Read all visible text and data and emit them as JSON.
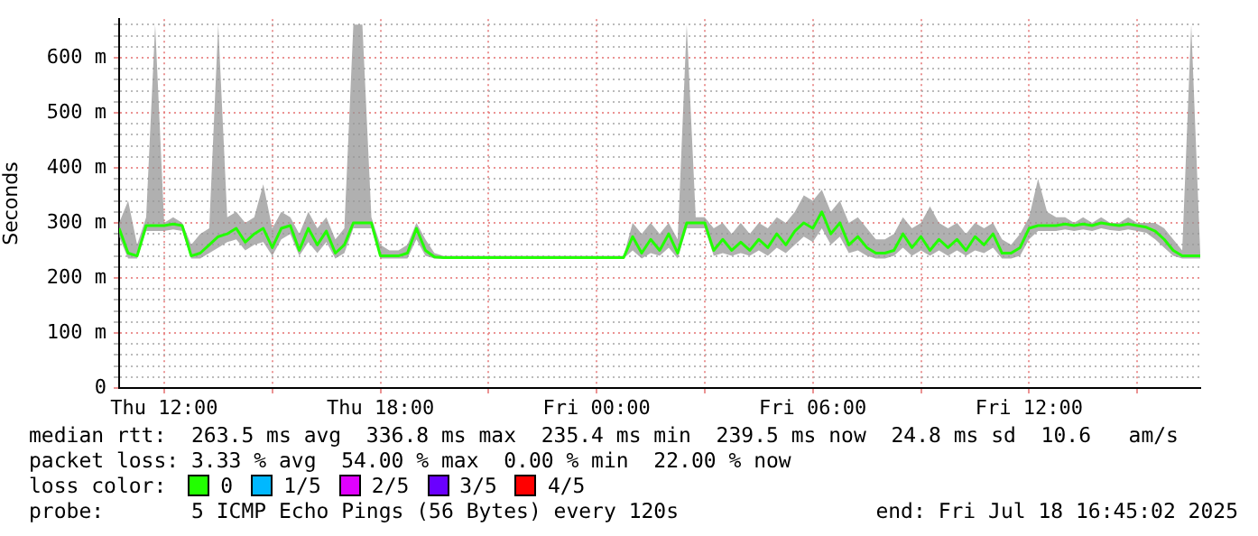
{
  "chart_data": {
    "type": "line",
    "ylabel": "Seconds",
    "x": [
      "2025-07-17T10:45",
      "2025-07-17T11:00",
      "2025-07-17T11:15",
      "2025-07-17T11:30",
      "2025-07-17T11:45",
      "2025-07-17T12:00",
      "2025-07-17T12:15",
      "2025-07-17T12:30",
      "2025-07-17T12:45",
      "2025-07-17T13:00",
      "2025-07-17T13:15",
      "2025-07-17T13:30",
      "2025-07-17T13:45",
      "2025-07-17T14:00",
      "2025-07-17T14:15",
      "2025-07-17T14:30",
      "2025-07-17T14:45",
      "2025-07-17T15:00",
      "2025-07-17T15:15",
      "2025-07-17T15:30",
      "2025-07-17T15:45",
      "2025-07-17T16:00",
      "2025-07-17T16:15",
      "2025-07-17T16:30",
      "2025-07-17T16:45",
      "2025-07-17T17:00",
      "2025-07-17T17:15",
      "2025-07-17T17:30",
      "2025-07-17T17:45",
      "2025-07-17T18:00",
      "2025-07-17T18:15",
      "2025-07-17T18:30",
      "2025-07-17T18:45",
      "2025-07-17T19:00",
      "2025-07-17T19:15",
      "2025-07-17T19:30",
      "2025-07-17T19:45",
      "2025-07-17T20:00",
      "2025-07-17T20:15",
      "2025-07-17T20:30",
      "2025-07-17T20:45",
      "2025-07-17T21:00",
      "2025-07-17T21:15",
      "2025-07-17T21:30",
      "2025-07-17T21:45",
      "2025-07-17T22:00",
      "2025-07-17T22:15",
      "2025-07-17T22:30",
      "2025-07-17T22:45",
      "2025-07-17T23:00",
      "2025-07-17T23:15",
      "2025-07-17T23:30",
      "2025-07-17T23:45",
      "2025-07-18T00:00",
      "2025-07-18T00:15",
      "2025-07-18T00:30",
      "2025-07-18T00:45",
      "2025-07-18T01:00",
      "2025-07-18T01:15",
      "2025-07-18T01:30",
      "2025-07-18T01:45",
      "2025-07-18T02:00",
      "2025-07-18T02:15",
      "2025-07-18T02:30",
      "2025-07-18T02:45",
      "2025-07-18T03:00",
      "2025-07-18T03:15",
      "2025-07-18T03:30",
      "2025-07-18T03:45",
      "2025-07-18T04:00",
      "2025-07-18T04:15",
      "2025-07-18T04:30",
      "2025-07-18T04:45",
      "2025-07-18T05:00",
      "2025-07-18T05:15",
      "2025-07-18T05:30",
      "2025-07-18T05:45",
      "2025-07-18T06:00",
      "2025-07-18T06:15",
      "2025-07-18T06:30",
      "2025-07-18T06:45",
      "2025-07-18T07:00",
      "2025-07-18T07:15",
      "2025-07-18T07:30",
      "2025-07-18T07:45",
      "2025-07-18T08:00",
      "2025-07-18T08:15",
      "2025-07-18T08:30",
      "2025-07-18T08:45",
      "2025-07-18T09:00",
      "2025-07-18T09:15",
      "2025-07-18T09:30",
      "2025-07-18T09:45",
      "2025-07-18T10:00",
      "2025-07-18T10:15",
      "2025-07-18T10:30",
      "2025-07-18T10:45",
      "2025-07-18T11:00",
      "2025-07-18T11:15",
      "2025-07-18T11:30",
      "2025-07-18T11:45",
      "2025-07-18T12:00",
      "2025-07-18T12:15",
      "2025-07-18T12:30",
      "2025-07-18T12:45",
      "2025-07-18T13:00",
      "2025-07-18T13:15",
      "2025-07-18T13:30",
      "2025-07-18T13:45",
      "2025-07-18T14:00",
      "2025-07-18T14:15",
      "2025-07-18T14:30",
      "2025-07-18T14:45",
      "2025-07-18T15:00",
      "2025-07-18T15:15",
      "2025-07-18T15:30",
      "2025-07-18T15:45",
      "2025-07-18T16:00",
      "2025-07-18T16:15",
      "2025-07-18T16:30",
      "2025-07-18T16:45"
    ],
    "series": [
      {
        "color": "#22ff00",
        "values": [
          290,
          245,
          240,
          295,
          295,
          295,
          298,
          295,
          240,
          245,
          260,
          275,
          280,
          290,
          265,
          280,
          290,
          255,
          290,
          295,
          250,
          290,
          260,
          285,
          245,
          260,
          300,
          300,
          300,
          240,
          240,
          240,
          245,
          290,
          250,
          238,
          237,
          237,
          237,
          237,
          237,
          237,
          237,
          237,
          237,
          237,
          237,
          237,
          237,
          237,
          237,
          237,
          237,
          237,
          237,
          237,
          237,
          275,
          245,
          270,
          250,
          280,
          245,
          300,
          300,
          300,
          250,
          270,
          250,
          265,
          250,
          270,
          255,
          280,
          260,
          285,
          300,
          290,
          320,
          280,
          300,
          260,
          275,
          255,
          245,
          245,
          250,
          280,
          255,
          275,
          250,
          270,
          255,
          270,
          250,
          275,
          260,
          280,
          245,
          245,
          255,
          290,
          295,
          295,
          295,
          298,
          295,
          298,
          295,
          300,
          297,
          295,
          298,
          295,
          292,
          285,
          270,
          250,
          240,
          240,
          240
        ],
        "upper": [
          300,
          340,
          260,
          310,
          660,
          300,
          310,
          300,
          260,
          280,
          290,
          660,
          310,
          320,
          300,
          310,
          370,
          290,
          320,
          310,
          280,
          320,
          290,
          310,
          270,
          290,
          660,
          660,
          310,
          260,
          250,
          250,
          260,
          300,
          270,
          245,
          240,
          240,
          240,
          240,
          240,
          240,
          240,
          240,
          240,
          240,
          240,
          240,
          240,
          240,
          240,
          240,
          240,
          240,
          240,
          240,
          240,
          300,
          280,
          300,
          280,
          300,
          270,
          660,
          310,
          310,
          290,
          300,
          280,
          300,
          280,
          300,
          290,
          310,
          300,
          320,
          350,
          340,
          360,
          320,
          340,
          300,
          310,
          290,
          270,
          270,
          280,
          310,
          290,
          300,
          330,
          300,
          290,
          300,
          280,
          300,
          290,
          300,
          270,
          260,
          280,
          310,
          380,
          320,
          310,
          310,
          300,
          310,
          300,
          310,
          300,
          300,
          310,
          300,
          300,
          300,
          290,
          270,
          250,
          660,
          245
        ],
        "lower": [
          275,
          235,
          235,
          285,
          285,
          285,
          288,
          285,
          235,
          235,
          245,
          255,
          265,
          270,
          250,
          260,
          265,
          240,
          270,
          280,
          240,
          265,
          245,
          265,
          235,
          245,
          290,
          290,
          290,
          235,
          235,
          235,
          235,
          270,
          240,
          235,
          235,
          235,
          235,
          235,
          235,
          235,
          235,
          235,
          235,
          235,
          235,
          235,
          235,
          235,
          235,
          235,
          235,
          235,
          235,
          235,
          235,
          250,
          235,
          245,
          240,
          255,
          235,
          290,
          290,
          290,
          240,
          245,
          240,
          245,
          240,
          250,
          240,
          255,
          245,
          260,
          275,
          265,
          290,
          260,
          275,
          245,
          250,
          240,
          235,
          235,
          240,
          255,
          240,
          250,
          240,
          250,
          240,
          250,
          240,
          250,
          245,
          255,
          235,
          235,
          240,
          270,
          285,
          285,
          285,
          288,
          285,
          288,
          285,
          290,
          287,
          285,
          288,
          285,
          282,
          270,
          255,
          240,
          235,
          235,
          235
        ]
      }
    ],
    "xlim": [
      "2025-07-17T10:45",
      "2025-07-18T16:45"
    ],
    "xticks": [
      {
        "value": "2025-07-17T12:00",
        "label": "Thu 12:00"
      },
      {
        "value": "2025-07-17T15:00",
        "label": null
      },
      {
        "value": "2025-07-17T18:00",
        "label": "Thu 18:00"
      },
      {
        "value": "2025-07-17T21:00",
        "label": null
      },
      {
        "value": "2025-07-18T00:00",
        "label": "Fri 00:00"
      },
      {
        "value": "2025-07-18T03:00",
        "label": null
      },
      {
        "value": "2025-07-18T06:00",
        "label": "Fri 06:00"
      },
      {
        "value": "2025-07-18T09:00",
        "label": null
      },
      {
        "value": "2025-07-18T12:00",
        "label": "Fri 12:00"
      },
      {
        "value": "2025-07-18T15:00",
        "label": null
      }
    ],
    "ylim": [
      0,
      670
    ],
    "yticks": [
      0,
      {
        "value": 20,
        "label": null
      },
      {
        "value": 40,
        "label": null
      },
      {
        "value": 60,
        "label": null
      },
      {
        "value": 80,
        "label": null
      },
      {
        "value": 100,
        "label": "100 m"
      },
      {
        "value": 120,
        "label": null
      },
      {
        "value": 140,
        "label": null
      },
      {
        "value": 160,
        "label": null
      },
      {
        "value": 180,
        "label": null
      },
      {
        "value": 200,
        "label": "200 m"
      },
      {
        "value": 220,
        "label": null
      },
      {
        "value": 240,
        "label": null
      },
      {
        "value": 260,
        "label": null
      },
      {
        "value": 280,
        "label": null
      },
      {
        "value": 300,
        "label": "300 m"
      },
      {
        "value": 320,
        "label": null
      },
      {
        "value": 340,
        "label": null
      },
      {
        "value": 360,
        "label": null
      },
      {
        "value": 380,
        "label": null
      },
      {
        "value": 400,
        "label": "400 m"
      },
      {
        "value": 420,
        "label": null
      },
      {
        "value": 440,
        "label": null
      },
      {
        "value": 460,
        "label": null
      },
      {
        "value": 480,
        "label": null
      },
      {
        "value": 500,
        "label": "500 m"
      },
      {
        "value": 520,
        "label": null
      },
      {
        "value": 540,
        "label": null
      },
      {
        "value": 560,
        "label": null
      },
      {
        "value": 580,
        "label": null
      },
      {
        "value": 600,
        "label": "600 m"
      },
      {
        "value": 620,
        "label": null
      },
      {
        "value": 640,
        "label": null
      },
      {
        "value": 660,
        "label": null
      }
    ],
    "grid": true,
    "line_style": "solid",
    "annotations": [
      "median rtt:  263.5 ms avg  336.8 ms max  235.4 ms min  239.5 ms now  24.8 ms sd  10.6   am/s",
      "packet loss: 3.33 % avg  54.00 % max  0.00 % min  22.00 % now",
      "loss color:",
      "0",
      "1/5",
      "2/5",
      "3/5",
      "4/5",
      "probe:       5 ICMP Echo Pings (56 Bytes) every 120s",
      "end: Fri Jul 18 16:45:02 2025"
    ]
  }
}
